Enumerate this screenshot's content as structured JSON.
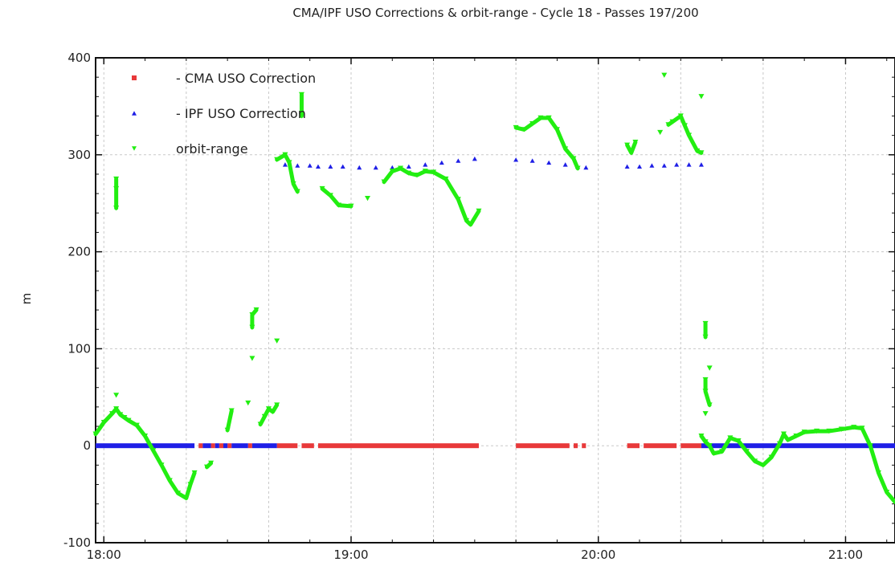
{
  "chart_data": {
    "type": "scatter",
    "title": "CMA/IPF USO Corrections & orbit-range - Cycle 18 - Passes 197/200",
    "xlabel": "",
    "ylabel": "m",
    "x_unit": "time HH:MM",
    "xlim": [
      "17:58",
      "21:12"
    ],
    "ylim": [
      -100,
      400
    ],
    "x_ticks": [
      "18:00",
      "19:00",
      "20:00",
      "21:00"
    ],
    "y_ticks": [
      -100,
      0,
      100,
      200,
      300,
      400
    ],
    "grid": true,
    "legend_position": "top-left",
    "series": [
      {
        "name": "- CMA USO Correction",
        "marker": "square",
        "color": "#e8393a",
        "segments": [
          {
            "x_start": "18:23",
            "x_end": "18:24",
            "y": 0
          },
          {
            "x_start": "18:26",
            "x_end": "18:27",
            "y": 0
          },
          {
            "x_start": "18:28",
            "x_end": "18:29",
            "y": 0
          },
          {
            "x_start": "18:30",
            "x_end": "18:31",
            "y": 0
          },
          {
            "x_start": "18:35",
            "x_end": "18:36",
            "y": 0
          },
          {
            "x_start": "18:42",
            "x_end": "18:47",
            "y": 0
          },
          {
            "x_start": "18:48",
            "x_end": "18:51",
            "y": 0
          },
          {
            "x_start": "18:52",
            "x_end": "19:31",
            "y": 0
          },
          {
            "x_start": "19:40",
            "x_end": "19:53",
            "y": 0
          },
          {
            "x_start": "19:54",
            "x_end": "19:55",
            "y": 0
          },
          {
            "x_start": "19:56",
            "x_end": "19:57",
            "y": 0
          },
          {
            "x_start": "20:07",
            "x_end": "20:10",
            "y": 0
          },
          {
            "x_start": "20:11",
            "x_end": "20:19",
            "y": 0
          },
          {
            "x_start": "20:20",
            "x_end": "20:25",
            "y": 0
          }
        ]
      },
      {
        "name": "- IPF USO Correction",
        "marker": "triangle-up",
        "color": "#1f1fe6",
        "segments": [
          {
            "x_start": "17:58",
            "x_end": "18:22",
            "y": 0
          },
          {
            "x_start": "18:24",
            "x_end": "18:26",
            "y": 0
          },
          {
            "x_start": "18:27",
            "x_end": "18:28",
            "y": 0
          },
          {
            "x_start": "18:29",
            "x_end": "18:30",
            "y": 0
          },
          {
            "x_start": "18:31",
            "x_end": "18:35",
            "y": 0
          },
          {
            "x_start": "18:36",
            "x_end": "18:42",
            "y": 0
          },
          {
            "x_start": "20:25",
            "x_end": "21:12",
            "y": 0
          }
        ],
        "points": [
          {
            "x": "18:44",
            "y": 290
          },
          {
            "x": "18:47",
            "y": 289
          },
          {
            "x": "18:50",
            "y": 289
          },
          {
            "x": "18:52",
            "y": 288
          },
          {
            "x": "18:55",
            "y": 288
          },
          {
            "x": "18:58",
            "y": 288
          },
          {
            "x": "19:02",
            "y": 287
          },
          {
            "x": "19:06",
            "y": 287
          },
          {
            "x": "19:10",
            "y": 287
          },
          {
            "x": "19:14",
            "y": 288
          },
          {
            "x": "19:18",
            "y": 290
          },
          {
            "x": "19:22",
            "y": 292
          },
          {
            "x": "19:26",
            "y": 294
          },
          {
            "x": "19:30",
            "y": 296
          },
          {
            "x": "19:40",
            "y": 295
          },
          {
            "x": "19:44",
            "y": 294
          },
          {
            "x": "19:48",
            "y": 292
          },
          {
            "x": "19:52",
            "y": 290
          },
          {
            "x": "19:55",
            "y": 288
          },
          {
            "x": "19:57",
            "y": 287
          },
          {
            "x": "20:07",
            "y": 288
          },
          {
            "x": "20:10",
            "y": 288
          },
          {
            "x": "20:13",
            "y": 289
          },
          {
            "x": "20:16",
            "y": 289
          },
          {
            "x": "20:19",
            "y": 290
          },
          {
            "x": "20:22",
            "y": 290
          },
          {
            "x": "20:25",
            "y": 290
          }
        ]
      },
      {
        "name": "orbit-range",
        "marker": "triangle-down",
        "color": "#22ee11",
        "points": [
          {
            "x": "17:58",
            "y": 12
          },
          {
            "x": "18:00",
            "y": 24
          },
          {
            "x": "18:02",
            "y": 33
          },
          {
            "x": "18:03",
            "y": 38
          },
          {
            "x": "18:04",
            "y": 32
          },
          {
            "x": "18:05",
            "y": 29
          },
          {
            "x": "18:06",
            "y": 26
          },
          {
            "x": "18:08",
            "y": 21
          },
          {
            "x": "18:10",
            "y": 10
          },
          {
            "x": "18:12",
            "y": -5
          },
          {
            "x": "18:14",
            "y": -20
          },
          {
            "x": "18:16",
            "y": -36
          },
          {
            "x": "18:18",
            "y": -49
          },
          {
            "x": "18:20",
            "y": -54
          },
          {
            "x": "18:21",
            "y": -40
          },
          {
            "x": "18:22",
            "y": -28
          },
          {
            "x": "18:03",
            "y": 52
          },
          {
            "x": "18:03",
            "y": 245
          },
          {
            "x": "18:03",
            "y": 265
          },
          {
            "x": "18:03",
            "y": 275
          },
          {
            "x": "18:25",
            "y": -22
          },
          {
            "x": "18:26",
            "y": -18
          },
          {
            "x": "18:30",
            "y": 16
          },
          {
            "x": "18:31",
            "y": 36
          },
          {
            "x": "18:35",
            "y": 44
          },
          {
            "x": "18:36",
            "y": 90
          },
          {
            "x": "18:36",
            "y": 122
          },
          {
            "x": "18:36",
            "y": 135
          },
          {
            "x": "18:37",
            "y": 140
          },
          {
            "x": "18:38",
            "y": 22
          },
          {
            "x": "18:39",
            "y": 30
          },
          {
            "x": "18:40",
            "y": 38
          },
          {
            "x": "18:41",
            "y": 35
          },
          {
            "x": "18:42",
            "y": 42
          },
          {
            "x": "18:42",
            "y": 108
          },
          {
            "x": "18:42",
            "y": 295
          },
          {
            "x": "18:44",
            "y": 300
          },
          {
            "x": "18:45",
            "y": 292
          },
          {
            "x": "18:46",
            "y": 270
          },
          {
            "x": "18:47",
            "y": 262
          },
          {
            "x": "18:48",
            "y": 340
          },
          {
            "x": "18:48",
            "y": 362
          },
          {
            "x": "18:53",
            "y": 265
          },
          {
            "x": "18:55",
            "y": 258
          },
          {
            "x": "18:57",
            "y": 248
          },
          {
            "x": "19:00",
            "y": 247
          },
          {
            "x": "19:04",
            "y": 255
          },
          {
            "x": "19:08",
            "y": 272
          },
          {
            "x": "19:10",
            "y": 283
          },
          {
            "x": "19:12",
            "y": 286
          },
          {
            "x": "19:14",
            "y": 281
          },
          {
            "x": "19:16",
            "y": 279
          },
          {
            "x": "19:18",
            "y": 283
          },
          {
            "x": "19:20",
            "y": 282
          },
          {
            "x": "19:23",
            "y": 275
          },
          {
            "x": "19:26",
            "y": 254
          },
          {
            "x": "19:28",
            "y": 232
          },
          {
            "x": "19:29",
            "y": 228
          },
          {
            "x": "19:31",
            "y": 242
          },
          {
            "x": "19:40",
            "y": 328
          },
          {
            "x": "19:42",
            "y": 326
          },
          {
            "x": "19:44",
            "y": 332
          },
          {
            "x": "19:46",
            "y": 338
          },
          {
            "x": "19:48",
            "y": 338
          },
          {
            "x": "19:50",
            "y": 326
          },
          {
            "x": "19:52",
            "y": 306
          },
          {
            "x": "19:54",
            "y": 296
          },
          {
            "x": "19:55",
            "y": 286
          },
          {
            "x": "20:07",
            "y": 310
          },
          {
            "x": "20:08",
            "y": 302
          },
          {
            "x": "20:09",
            "y": 313
          },
          {
            "x": "20:15",
            "y": 323
          },
          {
            "x": "20:16",
            "y": 382
          },
          {
            "x": "20:17",
            "y": 331
          },
          {
            "x": "20:18",
            "y": 334
          },
          {
            "x": "20:20",
            "y": 340
          },
          {
            "x": "20:21",
            "y": 330
          },
          {
            "x": "20:22",
            "y": 320
          },
          {
            "x": "20:24",
            "y": 304
          },
          {
            "x": "20:25",
            "y": 302
          },
          {
            "x": "20:25",
            "y": 360
          },
          {
            "x": "20:26",
            "y": 126
          },
          {
            "x": "20:26",
            "y": 112
          },
          {
            "x": "20:27",
            "y": 80
          },
          {
            "x": "20:26",
            "y": 68
          },
          {
            "x": "20:26",
            "y": 56
          },
          {
            "x": "20:27",
            "y": 42
          },
          {
            "x": "20:26",
            "y": 33
          },
          {
            "x": "20:25",
            "y": 10
          },
          {
            "x": "20:26",
            "y": 4
          },
          {
            "x": "20:27",
            "y": 0
          },
          {
            "x": "20:28",
            "y": -8
          },
          {
            "x": "20:30",
            "y": -6
          },
          {
            "x": "20:32",
            "y": 8
          },
          {
            "x": "20:34",
            "y": 5
          },
          {
            "x": "20:36",
            "y": -6
          },
          {
            "x": "20:38",
            "y": -16
          },
          {
            "x": "20:40",
            "y": -20
          },
          {
            "x": "20:42",
            "y": -12
          },
          {
            "x": "20:44",
            "y": 2
          },
          {
            "x": "20:45",
            "y": 12
          },
          {
            "x": "20:46",
            "y": 6
          },
          {
            "x": "20:48",
            "y": 10
          },
          {
            "x": "20:50",
            "y": 14
          },
          {
            "x": "20:53",
            "y": 15
          },
          {
            "x": "20:56",
            "y": 15
          },
          {
            "x": "20:59",
            "y": 17
          },
          {
            "x": "21:02",
            "y": 19
          },
          {
            "x": "21:04",
            "y": 18
          },
          {
            "x": "21:06",
            "y": 0
          },
          {
            "x": "21:08",
            "y": -28
          },
          {
            "x": "21:10",
            "y": -48
          },
          {
            "x": "21:12",
            "y": -58
          }
        ]
      }
    ]
  }
}
